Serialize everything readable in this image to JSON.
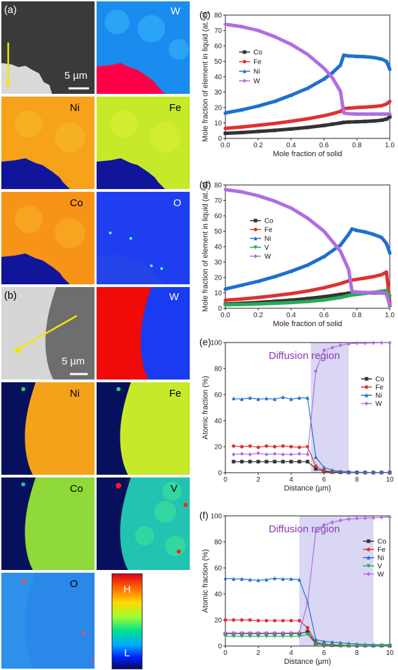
{
  "tiles_a": {
    "panel_label": "(a)",
    "scale": "5 µm",
    "labels": [
      "W",
      "Ni",
      "Fe",
      "Co",
      "O"
    ]
  },
  "tiles_b": {
    "panel_label": "(b)",
    "scale": "5 µm",
    "labels": [
      "W",
      "Ni",
      "Fe",
      "Co",
      "V",
      "O"
    ]
  },
  "colorbar": {
    "high": "H",
    "low": "L"
  },
  "chart_data": [
    {
      "panel": "(c)",
      "type": "line",
      "xlabel": "Mole fraction of solid",
      "ylabel": "Mole fraction of element in liquid (at.%)",
      "xlim": [
        0,
        1
      ],
      "ylim": [
        0,
        80
      ],
      "xticks": [
        "0.0",
        "0.2",
        "0.4",
        "0.6",
        "0.8",
        "1.0"
      ],
      "yticks": [
        "0",
        "10",
        "20",
        "30",
        "40",
        "50",
        "60",
        "70",
        "80"
      ],
      "legend": "upper-left",
      "series": [
        {
          "name": "Co",
          "color": "#333333",
          "marker": "square",
          "x": [
            0,
            0.1,
            0.2,
            0.3,
            0.4,
            0.5,
            0.6,
            0.65,
            0.7,
            0.72,
            0.75,
            0.8,
            0.85,
            0.9,
            0.95,
            0.98,
            1.0
          ],
          "y": [
            3.3,
            3.8,
            4.5,
            5.2,
            6.1,
            7.1,
            8.4,
            9.2,
            10.0,
            10.4,
            10.6,
            10.8,
            11.0,
            11.3,
            11.8,
            12.5,
            14
          ]
        },
        {
          "name": "Fe",
          "color": "#e03030",
          "marker": "circle",
          "x": [
            0,
            0.1,
            0.2,
            0.3,
            0.4,
            0.5,
            0.6,
            0.65,
            0.7,
            0.72,
            0.75,
            0.8,
            0.85,
            0.9,
            0.95,
            0.98,
            1.0
          ],
          "y": [
            6.5,
            7.4,
            8.5,
            9.7,
            11.1,
            12.7,
            14.7,
            16.0,
            17.5,
            19.3,
            19.6,
            20.0,
            20.3,
            20.6,
            21.2,
            22.3,
            24
          ]
        },
        {
          "name": "Ni",
          "color": "#1f6fd0",
          "marker": "triangle",
          "x": [
            0,
            0.1,
            0.2,
            0.3,
            0.4,
            0.5,
            0.6,
            0.65,
            0.7,
            0.72,
            0.75,
            0.8,
            0.85,
            0.9,
            0.95,
            0.98,
            1.0
          ],
          "y": [
            16.5,
            18.5,
            21,
            24,
            28,
            32.5,
            38.5,
            42.5,
            47.5,
            54,
            53.5,
            53.2,
            53,
            52.5,
            51.5,
            50,
            45
          ]
        },
        {
          "name": "W",
          "color": "#b06de0",
          "marker": "diamond",
          "x": [
            0,
            0.1,
            0.2,
            0.3,
            0.4,
            0.5,
            0.6,
            0.65,
            0.7,
            0.72,
            0.75,
            0.8,
            0.85,
            0.9,
            0.95,
            0.98,
            1.0
          ],
          "y": [
            74,
            72.5,
            70,
            66,
            61,
            54.5,
            45.5,
            39.5,
            30.5,
            16.5,
            16,
            15.8,
            15.8,
            15.8,
            15.8,
            15.8,
            15.8
          ]
        }
      ]
    },
    {
      "panel": "(d)",
      "type": "line",
      "xlabel": "Mole fraction of solid",
      "ylabel": "Mole fraction of element in liquid (at.%)",
      "xlim": [
        0,
        1
      ],
      "ylim": [
        0,
        80
      ],
      "xticks": [
        "0.0",
        "0.2",
        "0.4",
        "0.6",
        "0.8",
        "1.0"
      ],
      "yticks": [
        "0",
        "10",
        "20",
        "30",
        "40",
        "50",
        "60",
        "70",
        "80"
      ],
      "legend": "center-left",
      "series": [
        {
          "name": "Co",
          "color": "#333333",
          "marker": "square",
          "x": [
            0,
            0.1,
            0.2,
            0.3,
            0.4,
            0.5,
            0.6,
            0.7,
            0.75,
            0.77,
            0.8,
            0.85,
            0.9,
            0.95,
            0.98,
            1.0
          ],
          "y": [
            2.7,
            3.2,
            3.8,
            4.5,
            5.3,
            6.3,
            7.5,
            9.0,
            9.8,
            9.9,
            9.9,
            10,
            10,
            10,
            9.6,
            2
          ]
        },
        {
          "name": "Fe",
          "color": "#e03030",
          "marker": "circle",
          "x": [
            0,
            0.1,
            0.2,
            0.3,
            0.4,
            0.5,
            0.6,
            0.7,
            0.75,
            0.77,
            0.8,
            0.85,
            0.9,
            0.95,
            0.98,
            1.0
          ],
          "y": [
            5.2,
            6,
            7,
            8.2,
            9.5,
            11.2,
            13.3,
            16,
            17.8,
            18.3,
            18.8,
            19.6,
            20.5,
            21.8,
            23.5,
            4
          ]
        },
        {
          "name": "Ni",
          "color": "#1f6fd0",
          "marker": "triangle",
          "x": [
            0,
            0.1,
            0.2,
            0.3,
            0.4,
            0.5,
            0.6,
            0.7,
            0.75,
            0.77,
            0.8,
            0.85,
            0.9,
            0.95,
            0.98,
            1.0
          ],
          "y": [
            12.5,
            15,
            17.5,
            20.5,
            24,
            28,
            33.5,
            41,
            48,
            51.5,
            50.5,
            49.5,
            48,
            46,
            42,
            36
          ]
        },
        {
          "name": "V",
          "color": "#2aaa55",
          "marker": "triangle-down",
          "x": [
            0,
            0.1,
            0.2,
            0.3,
            0.4,
            0.5,
            0.6,
            0.7,
            0.75,
            0.77,
            0.8,
            0.85,
            0.9,
            0.95,
            0.98,
            1.0
          ],
          "y": [
            2.3,
            2.5,
            2.8,
            3.2,
            3.7,
            4.4,
            5.4,
            7,
            8.2,
            8.6,
            9,
            9.6,
            10.3,
            11,
            11.5,
            8
          ]
        },
        {
          "name": "W",
          "color": "#b06de0",
          "marker": "diamond",
          "x": [
            0,
            0.1,
            0.2,
            0.3,
            0.4,
            0.5,
            0.6,
            0.7,
            0.75,
            0.77,
            0.8,
            0.85,
            0.9,
            0.95,
            0.98,
            1.0
          ],
          "y": [
            77,
            75.5,
            73,
            69.5,
            65,
            58.5,
            50,
            37,
            25,
            11,
            10.5,
            10.3,
            10.2,
            10.1,
            9.5,
            2
          ]
        }
      ]
    },
    {
      "panel": "(e)",
      "type": "line",
      "xlabel": "Distance (µm)",
      "ylabel": "Atomic fraction (%)",
      "xlim": [
        0,
        10
      ],
      "ylim": [
        0,
        100
      ],
      "xticks": [
        "0",
        "2",
        "4",
        "6",
        "8",
        "10"
      ],
      "yticks": [
        "0",
        "20",
        "40",
        "60",
        "80",
        "100"
      ],
      "region": {
        "label": "Diffusion region",
        "x": [
          5.2,
          7.5
        ]
      },
      "legend": "right",
      "series": [
        {
          "name": "Co",
          "color": "#333333",
          "marker": "square",
          "x": [
            0.5,
            1,
            1.5,
            2,
            2.5,
            3,
            3.5,
            4,
            4.5,
            5,
            5.5,
            6,
            6.5,
            7,
            7.5,
            8,
            8.5,
            9,
            9.5,
            10
          ],
          "y": [
            8.5,
            8.5,
            8.5,
            8.5,
            8.5,
            8.5,
            8.5,
            8.5,
            8.5,
            8.5,
            3,
            1,
            0.5,
            0.3,
            0.2,
            0.2,
            0.1,
            0.1,
            0.1,
            0.1
          ]
        },
        {
          "name": "Fe",
          "color": "#e03030",
          "marker": "circle",
          "x": [
            0.5,
            1,
            1.5,
            2,
            2.5,
            3,
            3.5,
            4,
            4.5,
            5,
            5.5,
            6,
            6.5,
            7,
            7.5,
            8,
            8.5,
            9,
            9.5,
            10
          ],
          "y": [
            20.5,
            20,
            20.5,
            19.5,
            20.5,
            20,
            20.5,
            20,
            19.5,
            20,
            5,
            1.5,
            0.8,
            0.5,
            0.3,
            0.2,
            0.2,
            0.1,
            0.1,
            0.1
          ]
        },
        {
          "name": "Ni",
          "color": "#1f6fd0",
          "marker": "triangle",
          "x": [
            0.5,
            1,
            1.5,
            2,
            2.5,
            3,
            3.5,
            4,
            4.5,
            5,
            5.5,
            6,
            6.5,
            7,
            7.5,
            8,
            8.5,
            9,
            9.5,
            10
          ],
          "y": [
            57,
            56.5,
            57.5,
            56.5,
            57,
            56.5,
            58,
            56.5,
            57.5,
            57.5,
            12,
            4,
            2,
            1,
            0.6,
            0.4,
            0.3,
            0.2,
            0.2,
            0.2
          ]
        },
        {
          "name": "W",
          "color": "#b06de0",
          "marker": "diamond",
          "x": [
            0.5,
            1,
            1.5,
            2,
            2.5,
            3,
            3.5,
            4,
            4.5,
            5,
            5.5,
            6,
            6.5,
            7,
            7.5,
            8,
            8.5,
            9,
            9.5,
            10
          ],
          "y": [
            14,
            14.5,
            14,
            15,
            14,
            14.5,
            14,
            14,
            14.5,
            14,
            78,
            94,
            96,
            98,
            99,
            99.5,
            99.5,
            99.7,
            99.8,
            99.8
          ]
        }
      ]
    },
    {
      "panel": "(f)",
      "type": "line",
      "xlabel": "Distance (µm)",
      "ylabel": "Atomic fraction (%)",
      "xlim": [
        0,
        10
      ],
      "ylim": [
        0,
        100
      ],
      "xticks": [
        "0",
        "2",
        "4",
        "6",
        "8",
        "10"
      ],
      "yticks": [
        "0",
        "20",
        "40",
        "60",
        "80",
        "100"
      ],
      "region": {
        "label": "Diffusion region",
        "x": [
          4.5,
          9
        ]
      },
      "legend": "right",
      "series": [
        {
          "name": "Co",
          "color": "#333333",
          "marker": "square",
          "x": [
            0,
            0.5,
            1,
            1.5,
            2,
            2.5,
            3,
            3.5,
            4,
            4.5,
            5,
            5.5,
            6,
            6.5,
            7,
            7.5,
            8,
            8.5,
            9,
            9.5,
            10
          ],
          "y": [
            9.5,
            9.5,
            9.5,
            9.5,
            9.5,
            9.5,
            9.5,
            9.5,
            9.5,
            9.5,
            11,
            2,
            1,
            0.7,
            0.5,
            0.4,
            0.3,
            0.3,
            0.3,
            0.3,
            0.3
          ]
        },
        {
          "name": "Fe",
          "color": "#e03030",
          "marker": "circle",
          "x": [
            0,
            0.5,
            1,
            1.5,
            2,
            2.5,
            3,
            3.5,
            4,
            4.5,
            5,
            5.5,
            6,
            6.5,
            7,
            7.5,
            8,
            8.5,
            9,
            9.5,
            10
          ],
          "y": [
            20,
            20,
            20,
            20,
            19.5,
            19.5,
            19.5,
            19.5,
            19.5,
            19.5,
            14,
            3,
            1.5,
            1,
            0.7,
            0.5,
            0.4,
            0.4,
            0.3,
            0.3,
            0.3
          ]
        },
        {
          "name": "Ni",
          "color": "#1f6fd0",
          "marker": "triangle",
          "x": [
            0,
            0.5,
            1,
            1.5,
            2,
            2.5,
            3,
            3.5,
            4,
            4.5,
            5,
            5.5,
            6,
            6.5,
            7,
            7.5,
            8,
            8.5,
            9,
            9.5,
            10
          ],
          "y": [
            52,
            51.5,
            51.5,
            51,
            50.5,
            51,
            52,
            51.5,
            51.5,
            51,
            34,
            5,
            3.5,
            3,
            2.5,
            2,
            1.5,
            1.2,
            1,
            1,
            1
          ]
        },
        {
          "name": "V",
          "color": "#2aaa55",
          "marker": "triangle-down",
          "x": [
            0,
            0.5,
            1,
            1.5,
            2,
            2.5,
            3,
            3.5,
            4,
            4.5,
            5,
            5.5,
            6,
            6.5,
            7,
            7.5,
            8,
            8.5,
            9,
            9.5,
            10
          ],
          "y": [
            7.5,
            7.5,
            7.5,
            7.5,
            7.5,
            7.5,
            7.5,
            7.5,
            7.5,
            7.5,
            9,
            1.5,
            1,
            0.7,
            0.5,
            0.4,
            0.3,
            0.3,
            0.3,
            0.3,
            0.3
          ]
        },
        {
          "name": "W",
          "color": "#b06de0",
          "marker": "diamond",
          "x": [
            0,
            0.5,
            1,
            1.5,
            2,
            2.5,
            3,
            3.5,
            4,
            4.5,
            5,
            5.5,
            6,
            6.5,
            7,
            7.5,
            8,
            8.5,
            9,
            9.5,
            10
          ],
          "y": [
            10,
            10,
            10,
            10,
            10,
            10,
            10,
            10,
            10,
            10.5,
            33,
            88,
            93,
            95,
            96.5,
            97.5,
            98,
            98.2,
            98.5,
            98.8,
            99
          ]
        }
      ]
    }
  ]
}
